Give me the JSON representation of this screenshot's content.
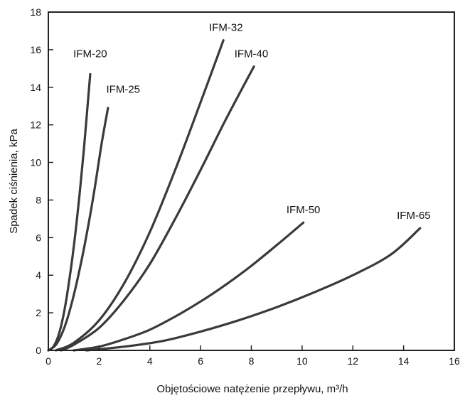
{
  "chart_data": {
    "type": "line",
    "xlabel": "Objętościowe natężenie przepływu, m³/h",
    "ylabel": "Spadek ciśnienia, kPa",
    "xlim": [
      0,
      16
    ],
    "ylim": [
      0,
      18
    ],
    "xticks": [
      0,
      2,
      4,
      6,
      8,
      10,
      12,
      14,
      16
    ],
    "yticks": [
      0,
      2,
      4,
      6,
      8,
      10,
      12,
      14,
      16,
      18
    ],
    "grid": false,
    "series": [
      {
        "name": "IFM-20",
        "label_at": [
          1.65,
          15.6
        ],
        "x": [
          0,
          0.2,
          0.4,
          0.6,
          0.8,
          1.0,
          1.2,
          1.4,
          1.65
        ],
        "y": [
          0,
          0.2,
          0.8,
          1.9,
          3.5,
          5.5,
          7.9,
          10.7,
          14.7
        ]
      },
      {
        "name": "IFM-25",
        "label_at": [
          2.95,
          13.7
        ],
        "x": [
          0,
          0.3,
          0.6,
          0.9,
          1.2,
          1.5,
          1.8,
          2.1,
          2.35
        ],
        "y": [
          0,
          0.3,
          1.1,
          2.4,
          4.1,
          6.1,
          8.4,
          11.0,
          12.9
        ]
      },
      {
        "name": "IFM-32",
        "label_at": [
          7.0,
          17.0
        ],
        "x": [
          0.3,
          1,
          2,
          3,
          4,
          5,
          6,
          6.9
        ],
        "y": [
          0,
          0.4,
          1.6,
          3.6,
          6.3,
          9.6,
          13.2,
          16.5
        ]
      },
      {
        "name": "IFM-40",
        "label_at": [
          8.0,
          15.6
        ],
        "x": [
          0.5,
          1,
          2,
          3,
          4,
          5,
          6,
          7,
          8.1
        ],
        "y": [
          0,
          0.3,
          1.2,
          2.7,
          4.6,
          7.0,
          9.6,
          12.3,
          15.1
        ]
      },
      {
        "name": "IFM-50",
        "label_at": [
          10.05,
          7.3
        ],
        "x": [
          1.0,
          2,
          3,
          4,
          5,
          6,
          7,
          8,
          9,
          10.05
        ],
        "y": [
          0,
          0.2,
          0.6,
          1.1,
          1.8,
          2.6,
          3.5,
          4.5,
          5.6,
          6.8
        ]
      },
      {
        "name": "IFM-65",
        "label_at": [
          14.4,
          7.0
        ],
        "x": [
          1.5,
          3,
          4.5,
          6,
          7.5,
          9,
          10.5,
          12,
          13.5,
          14.65
        ],
        "y": [
          0,
          0.2,
          0.5,
          1.0,
          1.6,
          2.3,
          3.1,
          4.0,
          5.1,
          6.5
        ]
      }
    ]
  }
}
